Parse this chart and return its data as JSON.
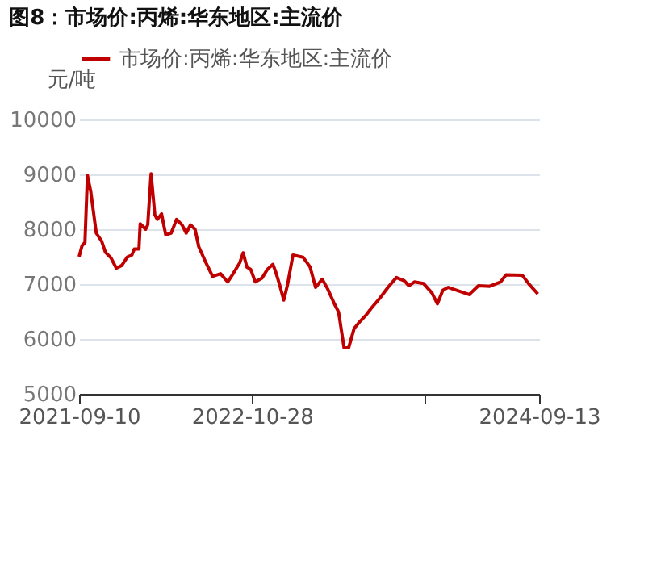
{
  "chart_data": {
    "type": "line",
    "title": "图8：市场价:丙烯:华东地区:主流价",
    "ylabel": "元/吨",
    "x": [
      "2021-09-10",
      "2021-09-17",
      "2021-09-24",
      "2021-09-30",
      "2021-10-08",
      "2021-10-21",
      "2021-11-03",
      "2021-11-12",
      "2021-11-25",
      "2021-12-08",
      "2021-12-21",
      "2022-01-03",
      "2022-01-14",
      "2022-01-20",
      "2022-01-31",
      "2022-02-03",
      "2022-02-16",
      "2022-02-21",
      "2022-03-01",
      "2022-03-10",
      "2022-03-16",
      "2022-03-26",
      "2022-04-05",
      "2022-04-18",
      "2022-05-01",
      "2022-05-14",
      "2022-05-24",
      "2022-06-03",
      "2022-06-14",
      "2022-06-23",
      "2022-07-10",
      "2022-07-26",
      "2022-08-14",
      "2022-08-31",
      "2022-09-13",
      "2022-09-29",
      "2022-10-07",
      "2022-10-16",
      "2022-10-25",
      "2022-11-05",
      "2022-11-21",
      "2022-12-04",
      "2022-12-17",
      "2022-12-23",
      "2023-01-02",
      "2023-01-12",
      "2023-01-21",
      "2023-02-03",
      "2023-02-27",
      "2023-03-16",
      "2023-03-29",
      "2023-04-14",
      "2023-04-27",
      "2023-05-13",
      "2023-05-23",
      "2023-06-05",
      "2023-06-16",
      "2023-06-29",
      "2023-07-12",
      "2023-07-28",
      "2023-08-10",
      "2023-08-29",
      "2023-09-18",
      "2023-10-08",
      "2023-10-27",
      "2023-11-07",
      "2023-11-20",
      "2023-12-12",
      "2024-01-01",
      "2024-01-14",
      "2024-01-27",
      "2024-02-09",
      "2024-03-07",
      "2024-03-30",
      "2024-04-21",
      "2024-05-18",
      "2024-06-13",
      "2024-06-26",
      "2024-08-04",
      "2024-08-21",
      "2024-09-10"
    ],
    "series": [
      {
        "name": "市场价:丙烯:华东地区:主流价",
        "color": "#c00000",
        "values": [
          7500,
          7700,
          7760,
          8980,
          8680,
          7930,
          7780,
          7580,
          7480,
          7290,
          7340,
          7490,
          7530,
          7640,
          7640,
          8100,
          8000,
          8080,
          9010,
          8260,
          8180,
          8280,
          7900,
          7930,
          8180,
          8080,
          7930,
          8080,
          8000,
          7680,
          7390,
          7140,
          7190,
          7040,
          7190,
          7390,
          7570,
          7310,
          7270,
          7040,
          7110,
          7270,
          7360,
          7240,
          6990,
          6710,
          6990,
          7530,
          7490,
          7310,
          6940,
          7090,
          6910,
          6640,
          6490,
          5840,
          5840,
          6190,
          6310,
          6440,
          6570,
          6740,
          6940,
          7120,
          7060,
          6970,
          7040,
          7010,
          6840,
          6640,
          6890,
          6940,
          6870,
          6810,
          6970,
          6960,
          7040,
          7170,
          7160,
          6990,
          6820
        ]
      }
    ],
    "xlim": [
      "2021-09-10",
      "2024-09-13"
    ],
    "xticks": [
      {
        "value": "2021-09-10",
        "label": "2021-09-10"
      },
      {
        "value": "2022-10-28",
        "label": "2022-10-28"
      },
      {
        "value": "2023-12-15",
        "label": null
      },
      {
        "value": "2024-09-13",
        "label": "2024-09-13"
      }
    ],
    "ylim": [
      5000,
      10000
    ],
    "yticks": [
      5000,
      6000,
      7000,
      8000,
      9000,
      10000
    ],
    "grid": "y",
    "legend": "top",
    "marker": "none",
    "line_style": "solid"
  }
}
